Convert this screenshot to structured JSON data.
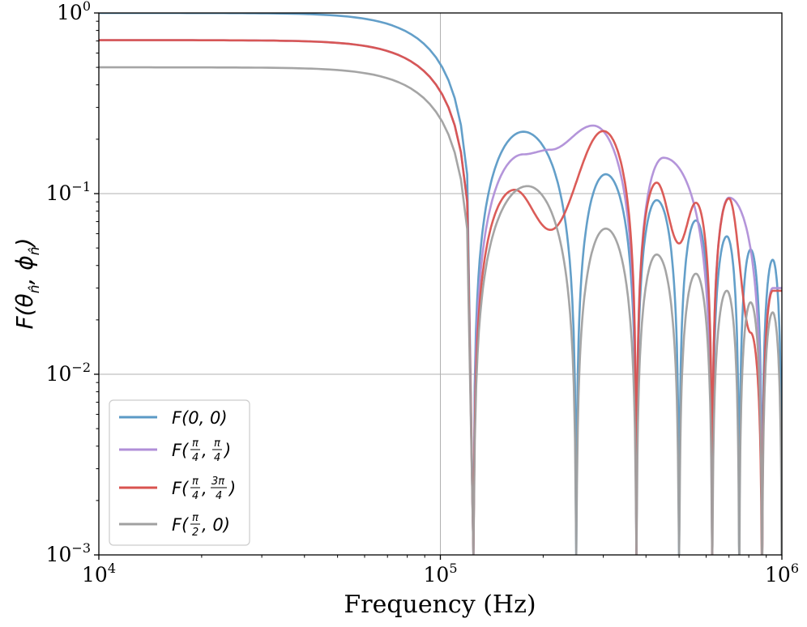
{
  "chart_data": {
    "type": "line",
    "title": "",
    "xlabel": "Frequency (Hz)",
    "ylabel": "F(θn̂, ϕn̂)",
    "xscale": "log",
    "yscale": "log",
    "xlim": [
      10000,
      1000000
    ],
    "ylim": [
      0.001,
      1
    ],
    "grid": true,
    "legend_position": "lower-left",
    "x_ticks": [
      {
        "value": 10000,
        "base": "10",
        "exp": "4"
      },
      {
        "value": 100000,
        "base": "10",
        "exp": "5"
      },
      {
        "value": 1000000,
        "base": "10",
        "exp": "6"
      }
    ],
    "y_ticks": [
      {
        "value": 1,
        "base": "10",
        "exp": "0"
      },
      {
        "value": 0.1,
        "base": "10",
        "exp": "−1"
      },
      {
        "value": 0.01,
        "base": "10",
        "exp": "−2"
      },
      {
        "value": 0.001,
        "base": "10",
        "exp": "−3"
      }
    ],
    "series": [
      {
        "name": "F(0, 0)",
        "color": "#5b9ac6",
        "low_freq_value": 1.0,
        "corner_freq": 100000,
        "peaks": [
          {
            "f": 175000,
            "v": 0.22
          },
          {
            "f": 305000,
            "v": 0.128
          },
          {
            "f": 430000,
            "v": 0.092
          },
          {
            "f": 560000,
            "v": 0.071
          },
          {
            "f": 690000,
            "v": 0.058
          },
          {
            "f": 810000,
            "v": 0.049
          },
          {
            "f": 940000,
            "v": 0.043
          }
        ],
        "nulls": [
          125000,
          250000,
          375000,
          500000,
          625000,
          750000,
          875000,
          1000000
        ]
      },
      {
        "name": "F(π/4, π/4)",
        "color": "#b08fd8",
        "low_freq_value": 0.707,
        "corner_freq": 100000,
        "peaks": [
          {
            "f": 175000,
            "v": 0.165
          },
          {
            "f": 210000,
            "v": 0.175
          },
          {
            "f": 280000,
            "v": 0.238
          },
          {
            "f": 450000,
            "v": 0.158
          },
          {
            "f": 700000,
            "v": 0.095
          },
          {
            "f": 940000,
            "v": 0.03
          }
        ],
        "nulls": [
          125000,
          375000,
          625000,
          875000
        ]
      },
      {
        "name": "F(π/4, 3π/4)",
        "color": "#d9534f",
        "low_freq_value": 0.707,
        "corner_freq": 100000,
        "peaks": [
          {
            "f": 165000,
            "v": 0.105
          },
          {
            "f": 300000,
            "v": 0.222
          },
          {
            "f": 430000,
            "v": 0.115
          },
          {
            "f": 560000,
            "v": 0.089
          },
          {
            "f": 700000,
            "v": 0.094
          },
          {
            "f": 940000,
            "v": 0.029
          }
        ],
        "dips": [
          {
            "f": 210000,
            "v": 0.063
          },
          {
            "f": 500000,
            "v": 0.053
          },
          {
            "f": 810000,
            "v": 0.017
          }
        ],
        "nulls": [
          125000,
          375000,
          625000,
          875000
        ]
      },
      {
        "name": "F(π/2, 0)",
        "color": "#a0a0a0",
        "low_freq_value": 0.5,
        "corner_freq": 100000,
        "peaks": [
          {
            "f": 180000,
            "v": 0.11
          },
          {
            "f": 305000,
            "v": 0.064
          },
          {
            "f": 430000,
            "v": 0.046
          },
          {
            "f": 560000,
            "v": 0.036
          },
          {
            "f": 690000,
            "v": 0.029
          },
          {
            "f": 810000,
            "v": 0.025
          },
          {
            "f": 940000,
            "v": 0.022
          }
        ],
        "nulls": [
          125000,
          250000,
          375000,
          500000,
          625000,
          750000,
          875000,
          1000000
        ]
      }
    ]
  }
}
